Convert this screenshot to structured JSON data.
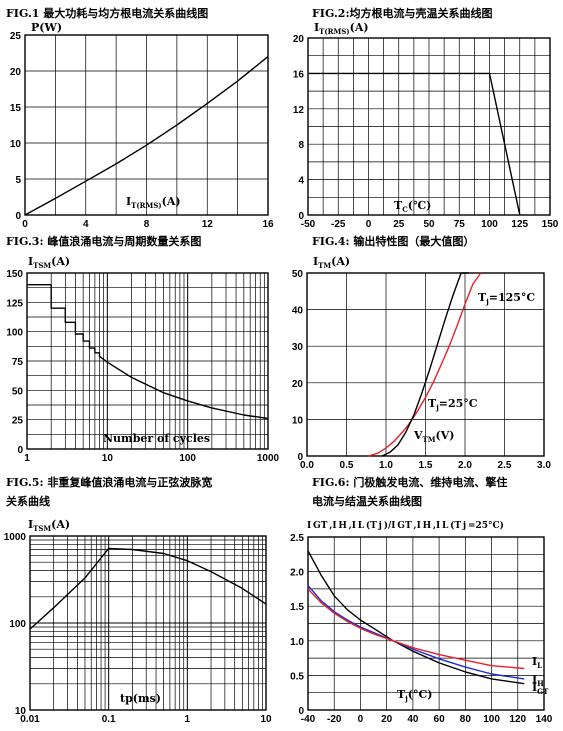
{
  "charts": [
    {
      "title": "FIG.1 最大功耗与均方根电流关系曲线图",
      "ylabel": "P(W)",
      "xlabel_main": "I",
      "xlabel_sub": "T(RMS)",
      "xlabel_tail": "(A)"
    },
    {
      "title": "FIG.2:均方根电流与壳温关系曲线图",
      "ylabel_main": "I",
      "ylabel_sub": "T(RMS)",
      "ylabel_tail": "(A)",
      "xlabel_main": "T",
      "xlabel_sub": "C",
      "xlabel_tail": "(℃)"
    },
    {
      "title": "FIG.3: 峰值浪涌电流与周期数量关系图",
      "ylabel_main": "I",
      "ylabel_sub": "TSM",
      "ylabel_tail": "(A)",
      "xlabel": "Number of cycles"
    },
    {
      "title": "FIG.4: 输出特性图（最大值图）",
      "ylabel_main": "I",
      "ylabel_sub": "TM",
      "ylabel_tail": "(A)",
      "xlabel_main": "V",
      "xlabel_sub": "TM",
      "xlabel_tail": "(V)",
      "label_125": "T",
      "label_125_sub": "j",
      "label_125_tail": "=125°C",
      "label_25": "T",
      "label_25_sub": "j",
      "label_25_tail": "=25°C"
    },
    {
      "title_line1": "FIG.5: 非重复峰值浪涌电流与正弦波脉宽",
      "title_line2": "关系曲线",
      "ylabel_main": "I",
      "ylabel_sub": "TSM",
      "ylabel_tail": "(A)",
      "xlabel": "tp(ms)"
    },
    {
      "title_line1": "FIG.6: 门极触发电流、维持电流、擎住",
      "title_line2": "电流与结温关系曲线图",
      "ylabel": "I GT ,I H ,I L (T j )/I GT ,I H ,I L (T j =25°C)",
      "xlabel_main": "T",
      "xlabel_sub": "j",
      "xlabel_tail": "(°C)",
      "legend_IL_main": "I",
      "legend_IL_sub": "L",
      "legend_IH_main": "I",
      "legend_IH_sub": "H",
      "legend_IGT_main": "I",
      "legend_IGT_sub": "GT"
    }
  ],
  "chart_data": [
    {
      "type": "line",
      "xlim": [
        0,
        16
      ],
      "ylim": [
        0,
        25
      ],
      "xticks": [
        0,
        4,
        8,
        12,
        16
      ],
      "yticks": [
        0,
        5,
        10,
        15,
        20,
        25
      ],
      "grid": true,
      "series": [
        {
          "x": [
            0,
            2,
            4,
            6,
            8,
            10,
            12,
            14,
            16
          ],
          "y": [
            0,
            2.3,
            4.7,
            7.1,
            9.7,
            12.5,
            15.5,
            18.6,
            22.0
          ]
        }
      ]
    },
    {
      "type": "line",
      "xlim": [
        -50,
        150
      ],
      "ylim": [
        0,
        20
      ],
      "xticks": [
        -50,
        -25,
        0,
        25,
        50,
        75,
        100,
        125,
        150
      ],
      "yticks": [
        0,
        4,
        8,
        12,
        16,
        20
      ],
      "grid": true,
      "series": [
        {
          "x": [
            -50,
            100,
            125
          ],
          "y": [
            16,
            16,
            0
          ]
        }
      ]
    },
    {
      "type": "line",
      "xscale": "log",
      "xlim": [
        1,
        1000
      ],
      "ylim": [
        0,
        150
      ],
      "xticks": [
        1,
        10,
        100,
        1000
      ],
      "yticks": [
        0,
        25,
        50,
        75,
        100,
        125,
        150
      ],
      "grid": true,
      "series": [
        {
          "x": [
            1,
            2,
            2,
            3,
            3,
            4,
            4,
            5,
            5,
            6,
            6,
            7,
            7,
            8,
            8,
            10,
            20,
            50,
            100,
            200,
            500,
            1000
          ],
          "y": [
            140,
            140,
            120,
            120,
            108,
            108,
            98,
            98,
            92,
            92,
            86,
            86,
            82,
            82,
            79,
            74,
            61,
            48,
            41,
            35,
            29,
            26
          ]
        }
      ]
    },
    {
      "type": "line",
      "xlim": [
        0,
        3
      ],
      "ylim": [
        0,
        50
      ],
      "xticks": [
        0.0,
        0.5,
        1.0,
        1.5,
        2.0,
        2.5,
        3.0
      ],
      "yticks": [
        0,
        10,
        20,
        30,
        40,
        50
      ],
      "grid": true,
      "series": [
        {
          "name": "Tj=125°C",
          "color": "#e8202a",
          "x": [
            0.78,
            0.9,
            1.0,
            1.1,
            1.2,
            1.3,
            1.4,
            1.5,
            1.6,
            1.7,
            1.8,
            1.9,
            2.0,
            2.1,
            2.2
          ],
          "y": [
            0,
            0.8,
            2.2,
            4.0,
            6.3,
            9.0,
            12.3,
            16.0,
            20.2,
            25.0,
            30.0,
            35.6,
            41.5,
            47.0,
            52.0
          ]
        },
        {
          "name": "Tj=25°C",
          "color": "#000000",
          "x": [
            0.95,
            1.05,
            1.15,
            1.25,
            1.35,
            1.45,
            1.55,
            1.65,
            1.75,
            1.85,
            1.95,
            2.05
          ],
          "y": [
            0,
            1.0,
            3.0,
            6.5,
            11.0,
            17.0,
            23.5,
            30.5,
            37.5,
            44.0,
            50.0,
            55.0
          ]
        }
      ]
    },
    {
      "type": "line",
      "xscale": "log",
      "yscale": "log",
      "xlim": [
        0.01,
        10
      ],
      "ylim": [
        10,
        1000
      ],
      "xticks": [
        0.01,
        0.1,
        1,
        10
      ],
      "yticks": [
        10,
        100,
        1000
      ],
      "grid": true,
      "series": [
        {
          "x": [
            0.01,
            0.02,
            0.05,
            0.1,
            0.2,
            0.5,
            1,
            2,
            5,
            10
          ],
          "y": [
            85,
            150,
            330,
            720,
            700,
            630,
            520,
            390,
            250,
            165
          ]
        }
      ]
    },
    {
      "type": "line",
      "xlim": [
        -40,
        140
      ],
      "ylim": [
        0,
        2.5
      ],
      "xticks": [
        -40,
        -20,
        0,
        20,
        40,
        60,
        80,
        100,
        120,
        140
      ],
      "yticks": [
        0,
        0.5,
        1.0,
        1.5,
        2.0,
        2.5
      ],
      "grid": true,
      "series": [
        {
          "name": "IGT",
          "color": "#000000",
          "x": [
            -40,
            -30,
            -20,
            -10,
            0,
            10,
            25,
            40,
            60,
            80,
            100,
            125
          ],
          "y": [
            2.3,
            1.95,
            1.65,
            1.45,
            1.3,
            1.18,
            1.0,
            0.85,
            0.68,
            0.55,
            0.45,
            0.38
          ]
        },
        {
          "name": "IH",
          "color": "#1c2bd8",
          "x": [
            -40,
            -30,
            -20,
            -10,
            0,
            10,
            25,
            40,
            60,
            80,
            100,
            125
          ],
          "y": [
            1.8,
            1.58,
            1.42,
            1.3,
            1.2,
            1.12,
            1.0,
            0.88,
            0.74,
            0.62,
            0.52,
            0.45
          ]
        },
        {
          "name": "IL",
          "color": "#e8202a",
          "x": [
            -40,
            -30,
            -20,
            -10,
            0,
            10,
            25,
            40,
            60,
            80,
            100,
            125
          ],
          "y": [
            1.75,
            1.55,
            1.4,
            1.28,
            1.18,
            1.1,
            1.0,
            0.9,
            0.8,
            0.72,
            0.64,
            0.6
          ]
        }
      ]
    }
  ]
}
